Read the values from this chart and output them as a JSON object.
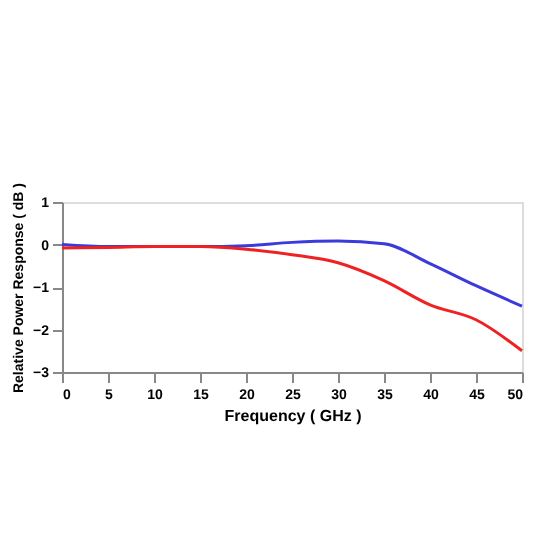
{
  "chart_data": {
    "type": "line",
    "xlabel": "Frequency ( GHz )",
    "ylabel": "Relative Power Response ( dB )",
    "x": [
      0,
      5,
      10,
      15,
      20,
      25,
      30,
      35,
      40,
      45,
      50
    ],
    "series": [
      {
        "color": "#3b3bdc",
        "values": [
          0,
          -0.05,
          -0.05,
          -0.05,
          -0.03,
          0.05,
          0.08,
          0.02,
          -0.45,
          -0.97,
          -1.45
        ]
      },
      {
        "color": "#ee2222",
        "values": [
          -0.08,
          -0.07,
          -0.05,
          -0.05,
          -0.11,
          -0.24,
          -0.43,
          -0.85,
          -1.42,
          -1.77,
          -2.5
        ]
      }
    ],
    "xlim": [
      0,
      50
    ],
    "xticks": [
      0,
      5,
      10,
      15,
      20,
      25,
      30,
      35,
      40,
      45,
      50
    ],
    "ylim": [
      -3,
      1
    ],
    "yticks": [
      1,
      0,
      -1,
      -2,
      -3
    ],
    "grid": false,
    "legend": false,
    "marker": "none",
    "line_style": "solid"
  }
}
